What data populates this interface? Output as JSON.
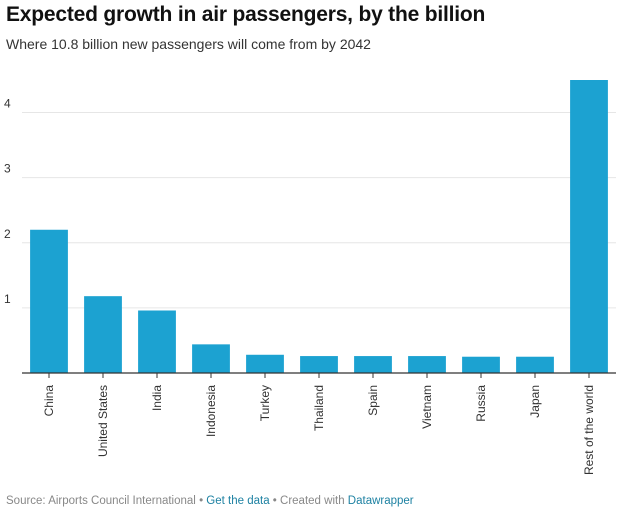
{
  "header": {
    "title": "Expected growth in air passengers, by the billion",
    "subtitle": "Where 10.8 billion new passengers will come from by 2042"
  },
  "footer": {
    "source_label": "Source: Airports Council International",
    "separator": "•",
    "get_data_link": "Get the data",
    "created_with_label": "Created with",
    "datawrapper_link": "Datawrapper"
  },
  "colors": {
    "bar": "#1ca2d1",
    "grid": "#e6e6e6",
    "baseline": "#333333",
    "link": "#1d81a2"
  },
  "chart_data": {
    "type": "bar",
    "title": "Expected growth in air passengers, by the billion",
    "subtitle": "Where 10.8 billion new passengers will come from by 2042",
    "xlabel": "",
    "ylabel": "",
    "ylim": [
      0,
      4.5
    ],
    "yticks": [
      "1",
      "2",
      "3",
      "4"
    ],
    "grid": true,
    "categories": [
      "China",
      "United States",
      "India",
      "Indonesia",
      "Turkey",
      "Thailand",
      "Spain",
      "Vietnam",
      "Russia",
      "Japan",
      "Rest of the world"
    ],
    "values": [
      2.2,
      1.18,
      0.96,
      0.44,
      0.28,
      0.26,
      0.26,
      0.26,
      0.25,
      0.25,
      4.5
    ]
  }
}
